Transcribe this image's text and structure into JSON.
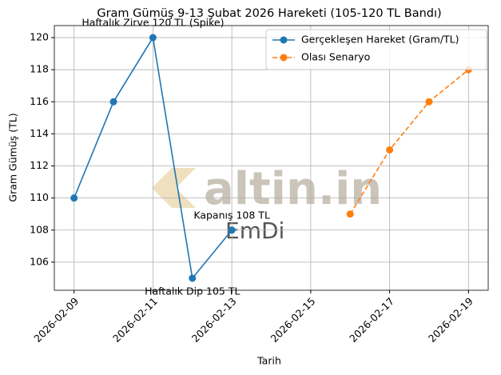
{
  "chart_data": {
    "type": "line",
    "title": "Gram Gümüş 9-13 Şubat 2026 Hareketi (105-120 TL Bandı)",
    "x_label": "Tarih",
    "y_label": "Gram Gümüş (TL)",
    "series": [
      {
        "name": "Gerçekleşen Hareket (Gram/TL)",
        "color": "#1f77b4",
        "linestyle": "solid",
        "x": [
          "2026-02-09",
          "2026-02-10",
          "2026-02-11",
          "2026-02-12",
          "2026-02-13"
        ],
        "values": [
          110,
          116,
          120,
          105,
          108
        ]
      },
      {
        "name": "Olası Senaryo",
        "color": "#ff7f0e",
        "linestyle": "dashed",
        "x": [
          "2026-02-16",
          "2026-02-17",
          "2026-02-18",
          "2026-02-19"
        ],
        "values": [
          109,
          113,
          116,
          118
        ]
      }
    ],
    "annotations": [
      {
        "text": "Haftalık Zirve 120 TL (Spike)",
        "x": "2026-02-11",
        "y": 120
      },
      {
        "text": "Haftalık Dip 105 TL",
        "x": "2026-02-12",
        "y": 105
      },
      {
        "text": "Kapanış 108 TL",
        "x": "2026-02-13",
        "y": 108
      }
    ],
    "watermark": [
      "altin.in",
      "EmDi"
    ],
    "xlim": [
      "2026-02-08T12:00",
      "2026-02-19T12:00"
    ],
    "xticks": [
      "2026-02-09",
      "2026-02-11",
      "2026-02-13",
      "2026-02-15",
      "2026-02-17",
      "2026-02-19"
    ],
    "ylim": [
      104.25,
      120.75
    ],
    "yticks": [
      106,
      108,
      110,
      112,
      114,
      116,
      118,
      120
    ],
    "grid": true,
    "legend": "upper right"
  }
}
